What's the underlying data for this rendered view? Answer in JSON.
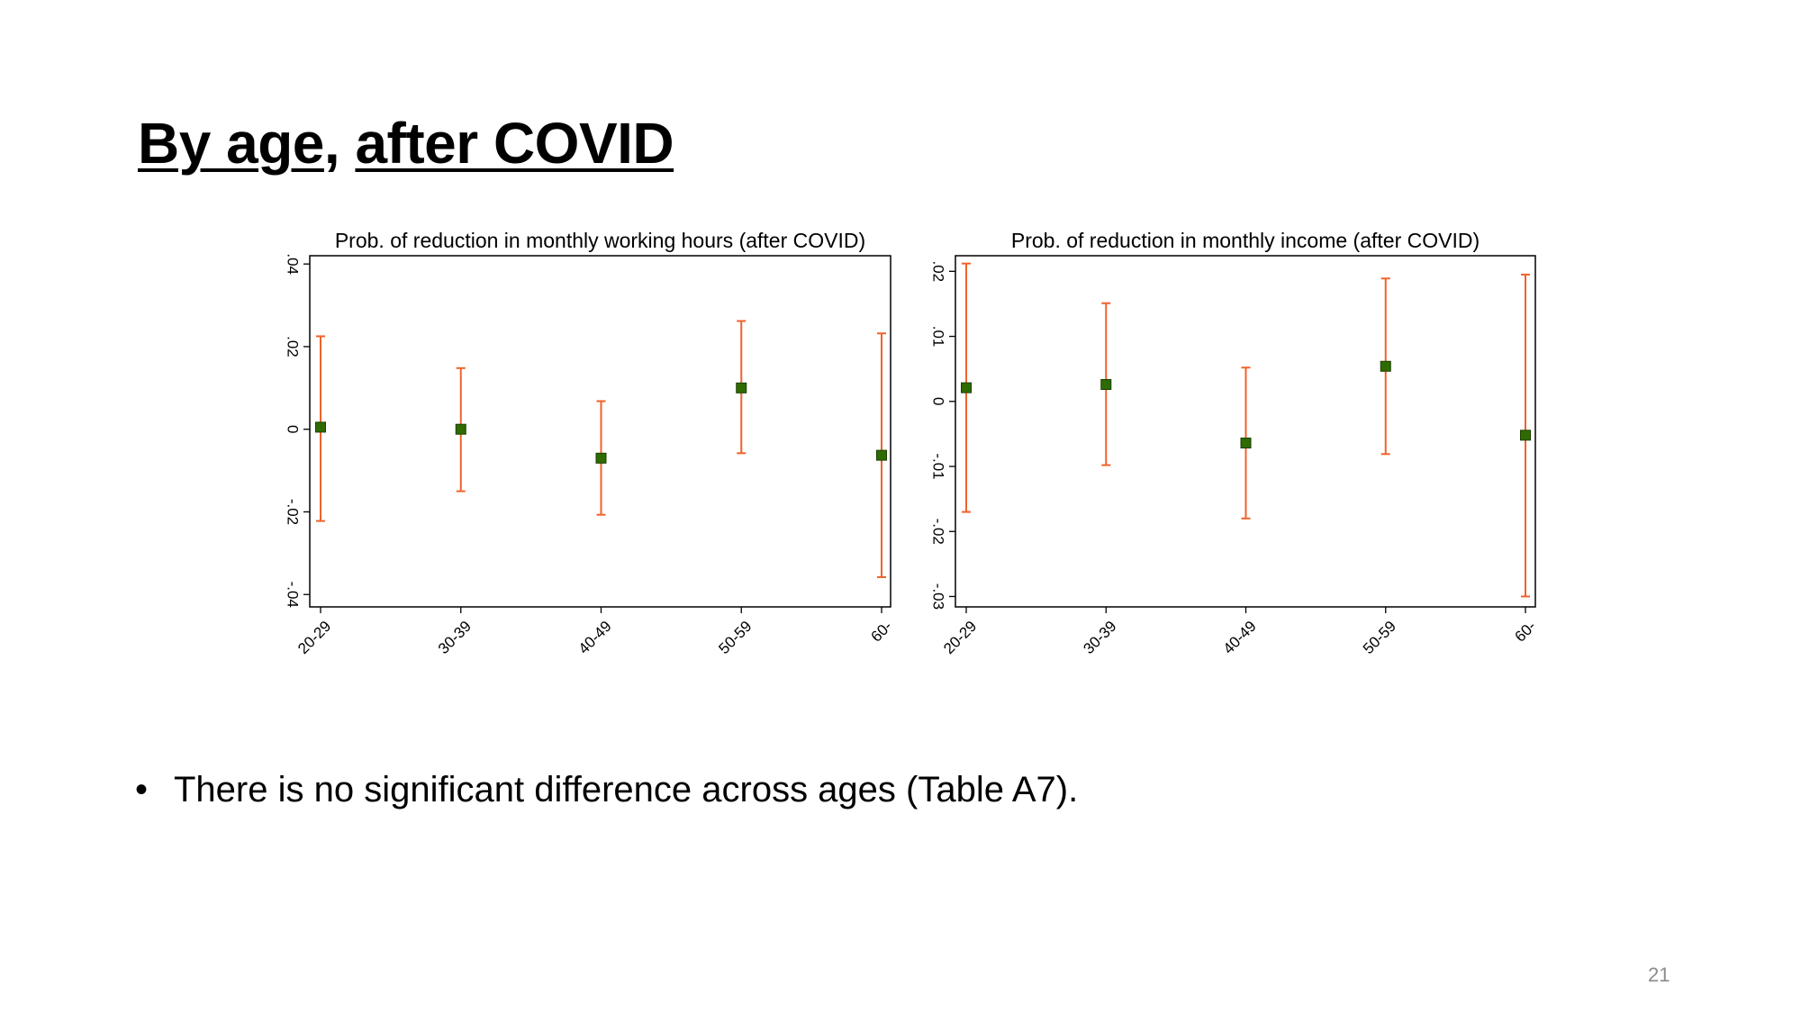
{
  "slide": {
    "title_part1": "By age",
    "title_sep": ", ",
    "title_part2": "after COVID",
    "bullet_symbol": "•",
    "bullet_text": "There is no significant difference across ages (Table A7).",
    "page_number": "21"
  },
  "chart_data": [
    {
      "type": "scatter",
      "title": "Prob. of reduction in monthly working hours (after COVID)",
      "categories": [
        "20-29",
        "30-39",
        "40-49",
        "50-59",
        "60-"
      ],
      "y_ticks": [
        {
          "value": 0.04,
          "label": ".04"
        },
        {
          "value": 0.02,
          "label": ".02"
        },
        {
          "value": 0,
          "label": "0"
        },
        {
          "value": -0.02,
          "label": "-.02"
        },
        {
          "value": -0.04,
          "label": "-.04"
        }
      ],
      "ylim": [
        -0.043,
        0.042
      ],
      "series": [
        {
          "point": [
            0.0005,
            0.0,
            -0.007,
            0.01,
            -0.0063
          ],
          "ci_upper": [
            0.0225,
            0.0148,
            0.0068,
            0.0262,
            0.0232
          ],
          "ci_lower": [
            -0.0222,
            -0.015,
            -0.0207,
            -0.0058,
            -0.0358
          ]
        }
      ],
      "colors": {
        "point": "#2e6b00",
        "ci": "#f0622a"
      },
      "grid": false
    },
    {
      "type": "scatter",
      "title": "Prob. of reduction in monthly income (after COVID)",
      "categories": [
        "20-29",
        "30-39",
        "40-49",
        "50-59",
        "60-"
      ],
      "y_ticks": [
        {
          "value": 0.02,
          "label": ".02"
        },
        {
          "value": 0.01,
          "label": ".01"
        },
        {
          "value": 0,
          "label": "0"
        },
        {
          "value": -0.01,
          "label": "-.01"
        },
        {
          "value": -0.02,
          "label": "-.02"
        },
        {
          "value": -0.03,
          "label": "-.03"
        }
      ],
      "ylim": [
        -0.0316,
        0.0224
      ],
      "series": [
        {
          "point": [
            0.0021,
            0.0026,
            -0.0064,
            0.0054,
            -0.0052
          ],
          "ci_upper": [
            0.0212,
            0.0151,
            0.0052,
            0.0189,
            0.0195
          ],
          "ci_lower": [
            -0.017,
            -0.0098,
            -0.018,
            -0.0081,
            -0.03
          ]
        }
      ],
      "colors": {
        "point": "#2e6b00",
        "ci": "#f0622a"
      },
      "grid": false
    }
  ]
}
